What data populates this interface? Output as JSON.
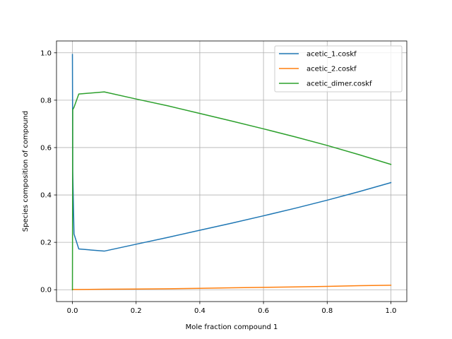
{
  "chart_data": {
    "type": "line",
    "title": "",
    "xlabel": "Mole fraction compound 1",
    "ylabel": "Species composition of compound",
    "xlim": [
      -0.05,
      1.05
    ],
    "ylim": [
      -0.05,
      1.05
    ],
    "xticks": [
      0.0,
      0.2,
      0.4,
      0.6,
      0.8,
      1.0
    ],
    "xtick_labels": [
      "0.0",
      "0.2",
      "0.4",
      "0.6",
      "0.8",
      "1.0"
    ],
    "yticks": [
      0.0,
      0.2,
      0.4,
      0.6,
      0.8,
      1.0
    ],
    "ytick_labels": [
      "0.0",
      "0.2",
      "0.4",
      "0.6",
      "0.8",
      "1.0"
    ],
    "grid": true,
    "legend_position": "top-right",
    "series": [
      {
        "name": "acetic_1.coskf",
        "color": "#1f77b4",
        "x": [
          0.0,
          0.001,
          0.005,
          0.02,
          0.1,
          0.2,
          0.3,
          0.4,
          0.5,
          0.6,
          0.7,
          0.8,
          0.9,
          1.0
        ],
        "y": [
          0.993,
          0.5,
          0.235,
          0.172,
          0.163,
          0.192,
          0.221,
          0.251,
          0.281,
          0.312,
          0.344,
          0.378,
          0.414,
          0.452
        ]
      },
      {
        "name": "acetic_2.coskf",
        "color": "#ff7f0e",
        "x": [
          0.0,
          0.001,
          0.005,
          0.02,
          0.1,
          0.2,
          0.3,
          0.4,
          0.5,
          0.6,
          0.7,
          0.8,
          0.9,
          1.0
        ],
        "y": [
          0.0,
          0.001,
          0.001,
          0.001,
          0.002,
          0.003,
          0.004,
          0.006,
          0.008,
          0.01,
          0.012,
          0.014,
          0.017,
          0.019
        ]
      },
      {
        "name": "acetic_dimer.coskf",
        "color": "#2ca02c",
        "x": [
          0.0,
          0.001,
          0.005,
          0.02,
          0.1,
          0.2,
          0.3,
          0.4,
          0.5,
          0.6,
          0.7,
          0.8,
          0.9,
          1.0
        ],
        "y": [
          0.0,
          0.76,
          0.77,
          0.826,
          0.835,
          0.805,
          0.776,
          0.744,
          0.712,
          0.679,
          0.645,
          0.609,
          0.57,
          0.529
        ]
      }
    ]
  }
}
